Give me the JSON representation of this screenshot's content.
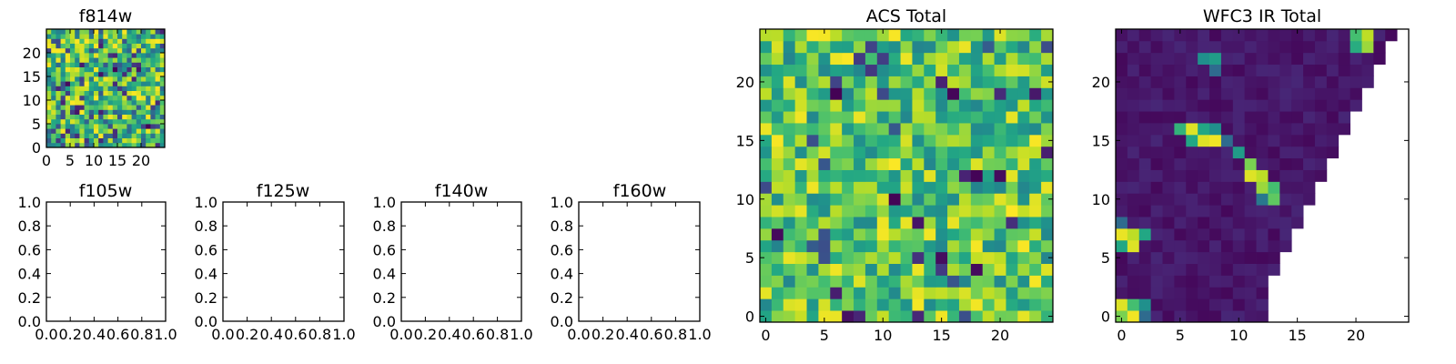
{
  "chart_data": [
    {
      "id": "f814w",
      "type": "heatmap",
      "title": "f814w",
      "grid_size": 25,
      "xlim": [
        0,
        25
      ],
      "ylim": [
        0,
        25
      ],
      "xticks": [
        0,
        5,
        10,
        15,
        20
      ],
      "yticks": [
        0,
        5,
        10,
        15,
        20
      ],
      "values_description": "noise-like field, values 0-1 (viridis)",
      "pattern": "noise",
      "seed": 11,
      "value_range": [
        0,
        1
      ]
    },
    {
      "id": "f105w",
      "type": "heatmap",
      "title": "f105w",
      "xlim": [
        0.0,
        1.0
      ],
      "ylim": [
        0.0,
        1.0
      ],
      "xticks": [
        "0.0",
        "0.2",
        "0.4",
        "0.6",
        "0.8",
        "1.0"
      ],
      "yticks": [
        "0.0",
        "0.2",
        "0.4",
        "0.6",
        "0.8",
        "1.0"
      ],
      "empty": true
    },
    {
      "id": "f125w",
      "type": "heatmap",
      "title": "f125w",
      "xlim": [
        0.0,
        1.0
      ],
      "ylim": [
        0.0,
        1.0
      ],
      "xticks": [
        "0.0",
        "0.2",
        "0.4",
        "0.6",
        "0.8",
        "1.0"
      ],
      "yticks": [
        "0.0",
        "0.2",
        "0.4",
        "0.6",
        "0.8",
        "1.0"
      ],
      "empty": true
    },
    {
      "id": "f140w",
      "type": "heatmap",
      "title": "f140w",
      "xlim": [
        0.0,
        1.0
      ],
      "ylim": [
        0.0,
        1.0
      ],
      "xticks": [
        "0.0",
        "0.2",
        "0.4",
        "0.6",
        "0.8",
        "1.0"
      ],
      "yticks": [
        "0.0",
        "0.2",
        "0.4",
        "0.6",
        "0.8",
        "1.0"
      ],
      "empty": true
    },
    {
      "id": "f160w",
      "type": "heatmap",
      "title": "f160w",
      "xlim": [
        0.0,
        1.0
      ],
      "ylim": [
        0.0,
        1.0
      ],
      "xticks": [
        "0.0",
        "0.2",
        "0.4",
        "0.6",
        "0.8",
        "1.0"
      ],
      "yticks": [
        "0.0",
        "0.2",
        "0.4",
        "0.6",
        "0.8",
        "1.0"
      ],
      "empty": true
    },
    {
      "id": "acs_total",
      "type": "heatmap",
      "title": "ACS Total",
      "grid_size": 25,
      "xlim": [
        -0.5,
        24.5
      ],
      "ylim": [
        -0.5,
        24.5
      ],
      "xticks": [
        0,
        5,
        10,
        15,
        20
      ],
      "yticks": [
        0,
        5,
        10,
        15,
        20
      ],
      "pattern": "noise_high",
      "seed": 29,
      "value_range": [
        0,
        1
      ]
    },
    {
      "id": "wfc3_ir_total",
      "type": "heatmap",
      "title": "WFC3 IR Total",
      "grid_size": 25,
      "xlim": [
        -0.5,
        24.5
      ],
      "ylim": [
        -0.5,
        24.5
      ],
      "xticks": [
        0,
        5,
        10,
        15,
        20
      ],
      "yticks": [
        0,
        5,
        10,
        15,
        20
      ],
      "pattern": "masked_triangle",
      "seed": 7,
      "bright_pixels": [
        [
          20,
          23,
          0.62
        ],
        [
          21,
          23,
          0.85
        ],
        [
          20,
          24,
          0.7
        ],
        [
          21,
          24,
          0.9
        ],
        [
          7,
          22,
          0.5
        ],
        [
          8,
          22,
          0.55
        ],
        [
          8,
          21,
          0.35
        ],
        [
          5,
          16,
          0.65
        ],
        [
          6,
          16,
          0.95
        ],
        [
          7,
          16,
          0.6
        ],
        [
          8,
          16,
          0.5
        ],
        [
          6,
          15,
          0.6
        ],
        [
          7,
          15,
          0.95
        ],
        [
          8,
          15,
          0.98
        ],
        [
          9,
          15,
          0.35
        ],
        [
          10,
          14,
          0.55
        ],
        [
          11,
          13,
          0.8
        ],
        [
          11,
          12,
          0.95
        ],
        [
          12,
          12,
          0.9
        ],
        [
          12,
          11,
          0.85
        ],
        [
          13,
          11,
          0.7
        ],
        [
          13,
          10,
          0.75
        ],
        [
          12,
          10,
          0.4
        ],
        [
          0,
          7,
          0.97
        ],
        [
          1,
          7,
          0.9
        ],
        [
          2,
          7,
          0.6
        ],
        [
          0,
          6,
          0.6
        ],
        [
          1,
          6,
          0.95
        ],
        [
          0,
          8,
          0.35
        ],
        [
          0,
          1,
          0.95
        ],
        [
          1,
          1,
          0.7
        ],
        [
          2,
          1,
          0.5
        ],
        [
          0,
          0,
          0.8
        ],
        [
          1,
          0,
          0.98
        ],
        [
          2,
          0,
          0.35
        ]
      ],
      "mask_rule": "pixels beyond diagonal boundary are blank (no data)",
      "mask_boundary": [
        [
          24,
          24,
          25
        ],
        [
          23,
          23,
          25
        ],
        [
          22,
          23,
          25
        ],
        [
          21,
          22,
          25
        ],
        [
          20,
          22,
          25
        ],
        [
          19,
          21,
          25
        ],
        [
          18,
          21,
          25
        ],
        [
          17,
          20,
          25
        ],
        [
          16,
          20,
          25
        ],
        [
          15,
          19,
          25
        ],
        [
          14,
          19,
          25
        ],
        [
          13,
          18,
          25
        ],
        [
          12,
          18,
          25
        ],
        [
          11,
          17,
          25
        ],
        [
          10,
          17,
          25
        ],
        [
          9,
          16,
          25
        ],
        [
          8,
          16,
          25
        ],
        [
          7,
          15,
          25
        ],
        [
          6,
          15,
          25
        ],
        [
          5,
          14,
          25
        ],
        [
          4,
          14,
          25
        ],
        [
          3,
          13,
          25
        ],
        [
          2,
          13,
          25
        ],
        [
          1,
          13,
          25
        ],
        [
          0,
          13,
          25
        ]
      ],
      "value_range": [
        0,
        1
      ]
    }
  ]
}
